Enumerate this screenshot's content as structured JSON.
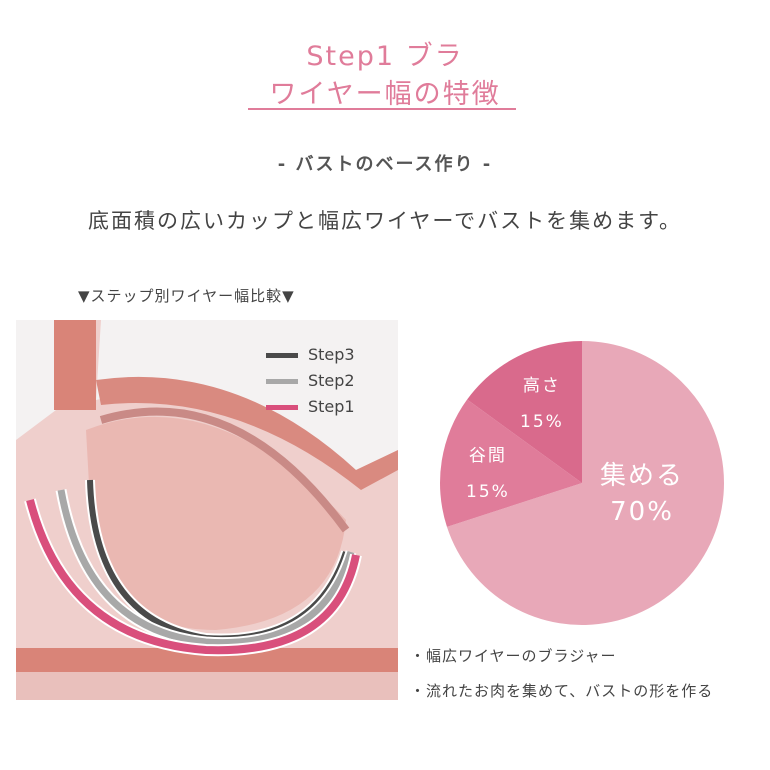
{
  "header": {
    "title_line1": "Step1 ブラ",
    "title_line2": "ワイヤー幅の特徴",
    "subtitle": "- バストのベース作り -",
    "lead": "底面積の広いカップと幅広ワイヤーでバストを集めます。"
  },
  "comparison": {
    "label": "▼ステップ別ワイヤー幅比較▼",
    "legend": [
      {
        "label": "Step3",
        "color": "#4a4a4a"
      },
      {
        "label": "Step2",
        "color": "#a8a8a8"
      },
      {
        "label": "Step1",
        "color": "#d94f7c"
      }
    ]
  },
  "chart_data": {
    "type": "pie",
    "title": "",
    "slices": [
      {
        "label": "集める",
        "value": 70,
        "display": "70%",
        "color": "#e8a8b8"
      },
      {
        "label": "谷間",
        "value": 15,
        "display": "15%",
        "color": "#e07c9a"
      },
      {
        "label": "高さ",
        "value": 15,
        "display": "15%",
        "color": "#d96a8c"
      }
    ],
    "start": "top",
    "direction": "clockwise"
  },
  "notes": [
    "・幅広ワイヤーのブラジャー",
    "・流れたお肉を集めて、バストの形を作る"
  ]
}
